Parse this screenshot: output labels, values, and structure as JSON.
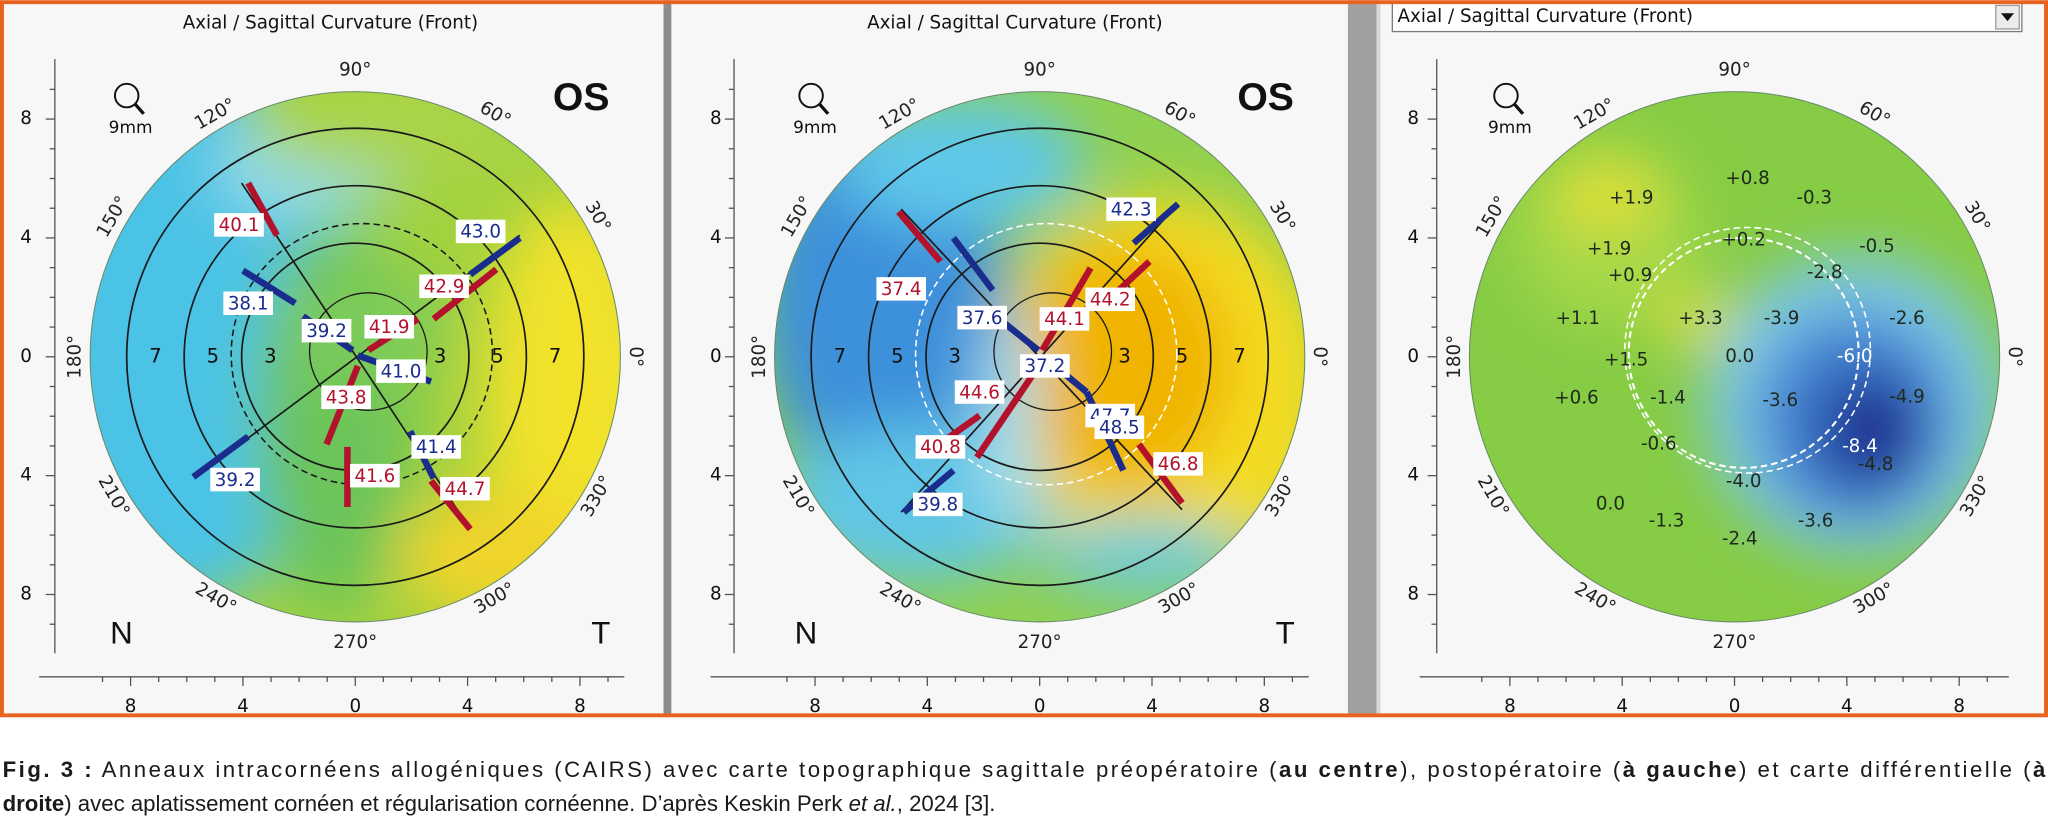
{
  "panels": [
    {
      "title": "Axial / Sagittal Curvature (Front)",
      "zoom": "9mm",
      "eye": "OS",
      "nasal": "N",
      "temporal": "T",
      "angle_labels": [
        "90°",
        "60°",
        "30°",
        "0°",
        "330°",
        "300°",
        "270°",
        "240°",
        "210°",
        "180°",
        "150°",
        "120°"
      ],
      "ring_labels": [
        "7",
        "5",
        "3",
        "3",
        "5",
        "7"
      ],
      "y_axis_labels": [
        "8",
        "4",
        "0",
        "4",
        "8"
      ],
      "x_axis_labels": [
        "8",
        "4",
        "0",
        "4",
        "8"
      ],
      "values": [
        {
          "text": "40.1",
          "color": "#b3122c"
        },
        {
          "text": "43.0",
          "color": "#1b2d8c"
        },
        {
          "text": "38.1",
          "color": "#1b2d8c"
        },
        {
          "text": "42.9",
          "color": "#b3122c"
        },
        {
          "text": "39.2",
          "color": "#1b2d8c"
        },
        {
          "text": "41.9",
          "color": "#b3122c"
        },
        {
          "text": "41.0",
          "color": "#1b2d8c"
        },
        {
          "text": "43.8",
          "color": "#b3122c"
        },
        {
          "text": "41.4",
          "color": "#1b2d8c"
        },
        {
          "text": "39.2",
          "color": "#1b2d8c"
        },
        {
          "text": "41.6",
          "color": "#b3122c"
        },
        {
          "text": "44.7",
          "color": "#b3122c"
        }
      ]
    },
    {
      "title": "Axial / Sagittal Curvature (Front)",
      "zoom": "9mm",
      "eye": "OS",
      "nasal": "N",
      "temporal": "T",
      "angle_labels": [
        "90°",
        "60°",
        "30°",
        "0°",
        "330°",
        "300°",
        "270°",
        "240°",
        "210°",
        "180°",
        "150°",
        "120°"
      ],
      "ring_labels": [
        "7",
        "5",
        "3",
        "3",
        "5",
        "7"
      ],
      "y_axis_labels": [
        "8",
        "4",
        "0",
        "4",
        "8"
      ],
      "x_axis_labels": [
        "8",
        "4",
        "0",
        "4",
        "8"
      ],
      "values": [
        {
          "text": "37.4",
          "color": "#b3122c"
        },
        {
          "text": "37.6",
          "color": "#1b2d8c"
        },
        {
          "text": "42.3",
          "color": "#1b2d8c"
        },
        {
          "text": "44.2",
          "color": "#b3122c"
        },
        {
          "text": "37.2",
          "color": "#1b2d8c"
        },
        {
          "text": "44.1",
          "color": "#b3122c"
        },
        {
          "text": "47.7",
          "color": "#1b2d8c"
        },
        {
          "text": "44.6",
          "color": "#b3122c"
        },
        {
          "text": "40.8",
          "color": "#b3122c"
        },
        {
          "text": "48.5",
          "color": "#1b2d8c"
        },
        {
          "text": "46.8",
          "color": "#b3122c"
        },
        {
          "text": "39.8",
          "color": "#1b2d8c"
        }
      ]
    },
    {
      "title": "Axial / Sagittal Curvature (Front)",
      "zoom": "9mm",
      "angle_labels": [
        "90°",
        "60°",
        "30°",
        "0°",
        "330°",
        "300°",
        "270°",
        "240°",
        "210°",
        "180°",
        "150°",
        "120°"
      ],
      "y_axis_labels": [
        "8",
        "4",
        "0",
        "4",
        "8"
      ],
      "x_axis_labels": [
        "8",
        "4",
        "0",
        "4",
        "8"
      ],
      "values": [
        {
          "text": "+1.9",
          "color": "#1e2a1e"
        },
        {
          "text": "+0.8",
          "color": "#1e2a1e"
        },
        {
          "text": "-0.3",
          "color": "#1e2a1e"
        },
        {
          "text": "+1.9",
          "color": "#1e2a1e"
        },
        {
          "text": "+0.2",
          "color": "#1e2a1e"
        },
        {
          "text": "-0.5",
          "color": "#1e2a1e"
        },
        {
          "text": "+0.9",
          "color": "#1e2a1e"
        },
        {
          "text": "-2.8",
          "color": "#1e2a1e"
        },
        {
          "text": "+1.1",
          "color": "#1e2a1e"
        },
        {
          "text": "+3.3",
          "color": "#1e2a1e"
        },
        {
          "text": "-3.9",
          "color": "#1e2a1e"
        },
        {
          "text": "-2.6",
          "color": "#1e2a1e"
        },
        {
          "text": "+1.5",
          "color": "#1e2a1e"
        },
        {
          "text": "0.0",
          "color": "#1e2a1e"
        },
        {
          "text": "-6.0",
          "color": "#ffffff"
        },
        {
          "text": "+0.6",
          "color": "#1e2a1e"
        },
        {
          "text": "-1.4",
          "color": "#1e2a1e"
        },
        {
          "text": "-3.6",
          "color": "#1e2a1e"
        },
        {
          "text": "-4.9",
          "color": "#1e2a1e"
        },
        {
          "text": "-0.6",
          "color": "#1e2a1e"
        },
        {
          "text": "-8.4",
          "color": "#ffffff"
        },
        {
          "text": "-4.0",
          "color": "#1e2a1e"
        },
        {
          "text": "-4.8",
          "color": "#1e2a1e"
        },
        {
          "text": "0.0",
          "color": "#1e2a1e"
        },
        {
          "text": "-1.3",
          "color": "#1e2a1e"
        },
        {
          "text": "-3.6",
          "color": "#1e2a1e"
        },
        {
          "text": "-2.4",
          "color": "#1e2a1e"
        }
      ]
    }
  ],
  "caption": {
    "lines": [
      [
        {
          "text": "Fig. 3 :",
          "style": "bold"
        },
        {
          "text": " Anneaux intracornéens allogéniques (CAIRS) avec carte topographique sagittale préopératoire (",
          "style": "normal"
        },
        {
          "text": "au centre",
          "style": "bold"
        },
        {
          "text": "), postopératoire (",
          "style": "normal"
        },
        {
          "text": "à gauche",
          "style": "bold"
        },
        {
          "text": ") et carte différentielle (",
          "style": "normal"
        },
        {
          "text": "à",
          "style": "bold"
        }
      ],
      [
        {
          "text": "droite",
          "style": "bold"
        },
        {
          "text": ") avec aplatissement cornéen et régularisation cornéenne. D’après Keskin Perk ",
          "style": "normal"
        },
        {
          "text": "et al.",
          "style": "italic"
        },
        {
          "text": ", 2024 [3].",
          "style": "normal"
        }
      ]
    ]
  }
}
